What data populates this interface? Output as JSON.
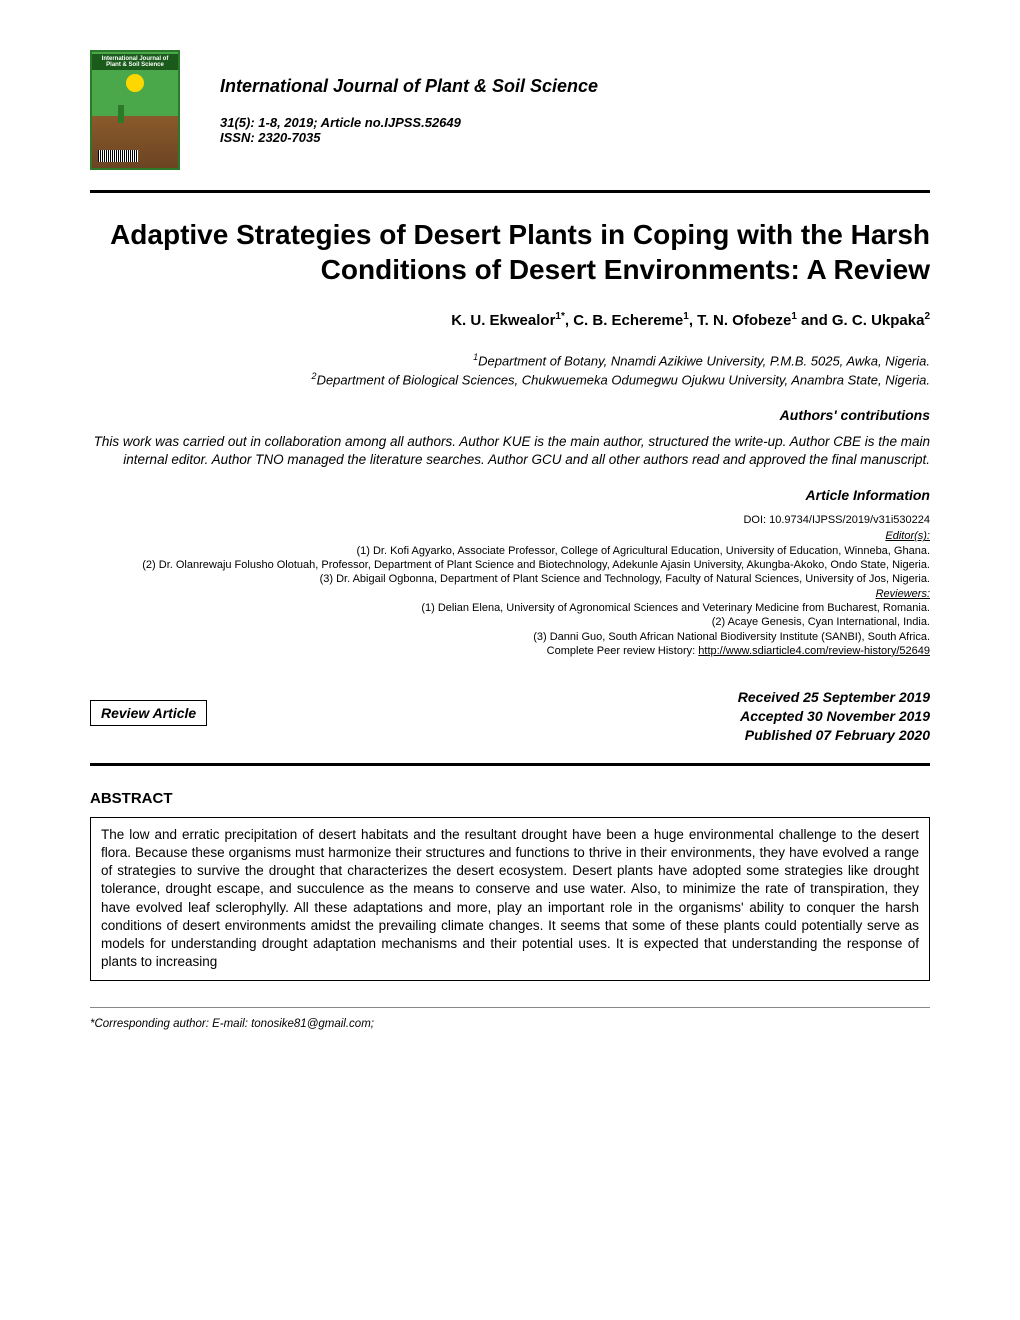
{
  "journal": {
    "name": "International Journal of Plant & Soil Science",
    "meta": "31(5): 1-8, 2019; Article no.IJPSS.52649",
    "issn": "ISSN: 2320-7035",
    "cover_title": "International Journal of Plant & Soil Science"
  },
  "article": {
    "title": "Adaptive Strategies of Desert Plants in Coping with the Harsh Conditions of Desert Environments: A Review",
    "authors_html": "K. U. Ekwealor<sup>1*</sup>, C. B. Echereme<sup>1</sup>, T. N. Ofobeze<sup>1</sup> and G. C. Ukpaka<sup>2</sup>",
    "affiliations_html": "<sup>1</sup>Department of Botany, Nnamdi Azikiwe University, P.M.B. 5025, Awka, Nigeria.<br><sup>2</sup>Department of Biological Sciences, Chukwuemeka Odumegwu Ojukwu University, Anambra State, Nigeria.",
    "contributions_label": "Authors' contributions",
    "contributions": "This work was carried out in collaboration among all authors. Author KUE is the main author, structured the write-up. Author CBE is the main internal editor. Author TNO managed the literature searches. Author GCU and all other authors read and approved the final manuscript.",
    "article_info_label": "Article Information",
    "doi": "DOI: 10.9734/IJPSS/2019/v31i530224",
    "editors_label": "Editor(s):",
    "editors": [
      "(1) Dr. Kofi Agyarko, Associate Professor, College of Agricultural Education, University of Education, Winneba, Ghana.",
      "(2) Dr. Olanrewaju Folusho Olotuah, Professor, Department of Plant Science and Biotechnology, Adekunle Ajasin University, Akungba-Akoko, Ondo State, Nigeria.",
      "(3) Dr. Abigail Ogbonna, Department of Plant Science and Technology, Faculty of Natural Sciences, University of Jos, Nigeria."
    ],
    "reviewers_label": "Reviewers:",
    "reviewers": [
      "(1) Delian Elena, University of Agronomical Sciences and Veterinary Medicine from Bucharest, Romania.",
      "(2) Acaye Genesis, Cyan International, India.",
      "(3) Danni Guo, South African National Biodiversity Institute (SANBI), South Africa."
    ],
    "history_label": "Complete Peer review History:",
    "history_url": "http://www.sdiarticle4.com/review-history/52649",
    "article_type": "Review Article",
    "dates": {
      "received": "Received 25 September 2019",
      "accepted": "Accepted 30 November 2019",
      "published": "Published 07 February 2020"
    },
    "abstract_label": "ABSTRACT",
    "abstract": "The low and erratic precipitation of desert habitats and the resultant drought have been a huge environmental challenge to the desert flora. Because these organisms must harmonize their structures and functions to thrive in their environments, they have evolved a range of strategies to survive the drought that characterizes the desert ecosystem. Desert plants have adopted some strategies like drought tolerance, drought escape, and succulence as the means to conserve and use water. Also, to minimize the rate of transpiration, they have evolved leaf sclerophylly. All these adaptations and more, play an important role in the organisms' ability to conquer the harsh conditions of desert environments amidst the prevailing climate changes. It seems that some of these plants could potentially serve as models for understanding drought adaptation mechanisms and their potential uses. It is expected that understanding the response of plants to increasing",
    "corresponding": "*Corresponding author: E-mail: tonosike81@gmail.com;"
  },
  "colors": {
    "text": "#000000",
    "background": "#ffffff",
    "rule": "#000000",
    "cover_green": "#4aa84a",
    "cover_border": "#2a7a2a",
    "cover_brown": "#8b5a2b"
  },
  "typography": {
    "title_fontsize": 28,
    "body_fontsize": 13.5,
    "small_fontsize": 11
  }
}
